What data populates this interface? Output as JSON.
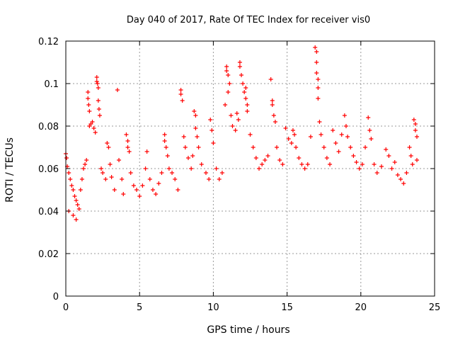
{
  "chart_data": {
    "type": "scatter",
    "title": "Day 040 of 2017, Rate Of TEC Index for receiver vis0",
    "xlabel": "GPS time / hours",
    "ylabel": "ROTI / TECUs",
    "xlim": [
      0,
      25
    ],
    "ylim": [
      0,
      0.12
    ],
    "x_ticks": [
      0,
      5,
      10,
      15,
      20,
      25
    ],
    "y_ticks": [
      0,
      0.02,
      0.04,
      0.06,
      0.08,
      0.1,
      0.12
    ],
    "x_tick_labels": [
      "0",
      "5",
      "10",
      "15",
      "20",
      "25"
    ],
    "y_tick_labels": [
      "0",
      "0.02",
      "0.04",
      "0.06",
      "0.08",
      "0.1",
      "0.12"
    ],
    "grid": true,
    "legend": "none",
    "marker": "+",
    "color": "#ff0000",
    "series": [
      {
        "points": [
          [
            0.0,
            0.067
          ],
          [
            0.05,
            0.065
          ],
          [
            0.1,
            0.061
          ],
          [
            0.2,
            0.058
          ],
          [
            0.3,
            0.055
          ],
          [
            0.4,
            0.052
          ],
          [
            0.5,
            0.05
          ],
          [
            0.6,
            0.047
          ],
          [
            0.7,
            0.045
          ],
          [
            0.8,
            0.043
          ],
          [
            0.9,
            0.041
          ],
          [
            0.2,
            0.04
          ],
          [
            0.5,
            0.038
          ],
          [
            0.7,
            0.036
          ],
          [
            1.0,
            0.05
          ],
          [
            1.1,
            0.055
          ],
          [
            1.2,
            0.06
          ],
          [
            1.3,
            0.062
          ],
          [
            1.4,
            0.064
          ],
          [
            1.5,
            0.096
          ],
          [
            1.5,
            0.093
          ],
          [
            1.55,
            0.09
          ],
          [
            1.6,
            0.087
          ],
          [
            1.6,
            0.08
          ],
          [
            1.7,
            0.081
          ],
          [
            1.8,
            0.082
          ],
          [
            1.9,
            0.079
          ],
          [
            2.0,
            0.077
          ],
          [
            2.1,
            0.103
          ],
          [
            2.1,
            0.101
          ],
          [
            2.15,
            0.1
          ],
          [
            2.2,
            0.098
          ],
          [
            2.2,
            0.092
          ],
          [
            2.25,
            0.088
          ],
          [
            2.3,
            0.085
          ],
          [
            2.4,
            0.06
          ],
          [
            2.5,
            0.058
          ],
          [
            2.7,
            0.055
          ],
          [
            2.8,
            0.072
          ],
          [
            2.9,
            0.07
          ],
          [
            3.0,
            0.062
          ],
          [
            3.1,
            0.056
          ],
          [
            3.3,
            0.05
          ],
          [
            3.5,
            0.097
          ],
          [
            3.6,
            0.064
          ],
          [
            3.8,
            0.055
          ],
          [
            3.9,
            0.048
          ],
          [
            4.1,
            0.076
          ],
          [
            4.2,
            0.073
          ],
          [
            4.2,
            0.07
          ],
          [
            4.3,
            0.068
          ],
          [
            4.4,
            0.058
          ],
          [
            4.6,
            0.052
          ],
          [
            4.8,
            0.05
          ],
          [
            5.0,
            0.047
          ],
          [
            5.2,
            0.052
          ],
          [
            5.4,
            0.06
          ],
          [
            5.5,
            0.068
          ],
          [
            5.7,
            0.055
          ],
          [
            5.9,
            0.05
          ],
          [
            6.1,
            0.048
          ],
          [
            6.3,
            0.053
          ],
          [
            6.5,
            0.058
          ],
          [
            6.7,
            0.076
          ],
          [
            6.7,
            0.073
          ],
          [
            6.8,
            0.07
          ],
          [
            6.9,
            0.066
          ],
          [
            7.0,
            0.06
          ],
          [
            7.2,
            0.058
          ],
          [
            7.4,
            0.055
          ],
          [
            7.6,
            0.05
          ],
          [
            7.8,
            0.097
          ],
          [
            7.8,
            0.095
          ],
          [
            7.9,
            0.092
          ],
          [
            8.0,
            0.075
          ],
          [
            8.1,
            0.07
          ],
          [
            8.3,
            0.065
          ],
          [
            8.5,
            0.06
          ],
          [
            8.6,
            0.066
          ],
          [
            8.7,
            0.087
          ],
          [
            8.8,
            0.085
          ],
          [
            8.8,
            0.079
          ],
          [
            8.9,
            0.075
          ],
          [
            9.0,
            0.07
          ],
          [
            9.2,
            0.062
          ],
          [
            9.5,
            0.058
          ],
          [
            9.7,
            0.055
          ],
          [
            9.8,
            0.083
          ],
          [
            9.9,
            0.078
          ],
          [
            10.0,
            0.072
          ],
          [
            10.2,
            0.06
          ],
          [
            10.4,
            0.055
          ],
          [
            10.6,
            0.058
          ],
          [
            10.8,
            0.09
          ],
          [
            10.9,
            0.108
          ],
          [
            10.9,
            0.106
          ],
          [
            11.0,
            0.104
          ],
          [
            11.0,
            0.096
          ],
          [
            11.1,
            0.1
          ],
          [
            11.2,
            0.085
          ],
          [
            11.3,
            0.08
          ],
          [
            11.5,
            0.078
          ],
          [
            11.6,
            0.086
          ],
          [
            11.7,
            0.083
          ],
          [
            11.8,
            0.11
          ],
          [
            11.8,
            0.108
          ],
          [
            11.9,
            0.104
          ],
          [
            12.0,
            0.1
          ],
          [
            12.1,
            0.096
          ],
          [
            12.2,
            0.098
          ],
          [
            12.2,
            0.093
          ],
          [
            12.3,
            0.09
          ],
          [
            12.3,
            0.087
          ],
          [
            12.5,
            0.076
          ],
          [
            12.7,
            0.07
          ],
          [
            12.9,
            0.065
          ],
          [
            13.1,
            0.06
          ],
          [
            13.3,
            0.062
          ],
          [
            13.5,
            0.064
          ],
          [
            13.7,
            0.066
          ],
          [
            13.9,
            0.102
          ],
          [
            14.0,
            0.092
          ],
          [
            14.0,
            0.09
          ],
          [
            14.1,
            0.085
          ],
          [
            14.2,
            0.082
          ],
          [
            14.3,
            0.07
          ],
          [
            14.5,
            0.064
          ],
          [
            14.7,
            0.062
          ],
          [
            14.9,
            0.079
          ],
          [
            15.1,
            0.074
          ],
          [
            15.3,
            0.072
          ],
          [
            15.4,
            0.078
          ],
          [
            15.5,
            0.076
          ],
          [
            15.6,
            0.07
          ],
          [
            15.8,
            0.065
          ],
          [
            16.0,
            0.062
          ],
          [
            16.2,
            0.06
          ],
          [
            16.4,
            0.062
          ],
          [
            16.6,
            0.075
          ],
          [
            16.9,
            0.117
          ],
          [
            17.0,
            0.115
          ],
          [
            17.0,
            0.11
          ],
          [
            17.0,
            0.105
          ],
          [
            17.1,
            0.102
          ],
          [
            17.1,
            0.098
          ],
          [
            17.1,
            0.093
          ],
          [
            17.2,
            0.082
          ],
          [
            17.3,
            0.076
          ],
          [
            17.5,
            0.07
          ],
          [
            17.7,
            0.065
          ],
          [
            17.9,
            0.062
          ],
          [
            18.1,
            0.078
          ],
          [
            18.3,
            0.072
          ],
          [
            18.5,
            0.068
          ],
          [
            18.7,
            0.076
          ],
          [
            18.9,
            0.085
          ],
          [
            19.0,
            0.08
          ],
          [
            19.1,
            0.075
          ],
          [
            19.3,
            0.07
          ],
          [
            19.5,
            0.066
          ],
          [
            19.7,
            0.063
          ],
          [
            19.9,
            0.06
          ],
          [
            20.1,
            0.062
          ],
          [
            20.3,
            0.07
          ],
          [
            20.5,
            0.084
          ],
          [
            20.6,
            0.078
          ],
          [
            20.7,
            0.074
          ],
          [
            20.9,
            0.062
          ],
          [
            21.1,
            0.058
          ],
          [
            21.4,
            0.061
          ],
          [
            21.7,
            0.069
          ],
          [
            21.9,
            0.066
          ],
          [
            22.1,
            0.06
          ],
          [
            22.3,
            0.063
          ],
          [
            22.5,
            0.057
          ],
          [
            22.7,
            0.055
          ],
          [
            22.9,
            0.053
          ],
          [
            23.1,
            0.058
          ],
          [
            23.3,
            0.07
          ],
          [
            23.4,
            0.066
          ],
          [
            23.5,
            0.062
          ],
          [
            23.6,
            0.083
          ],
          [
            23.7,
            0.081
          ],
          [
            23.7,
            0.078
          ],
          [
            23.8,
            0.075
          ],
          [
            23.8,
            0.064
          ]
        ]
      }
    ]
  }
}
